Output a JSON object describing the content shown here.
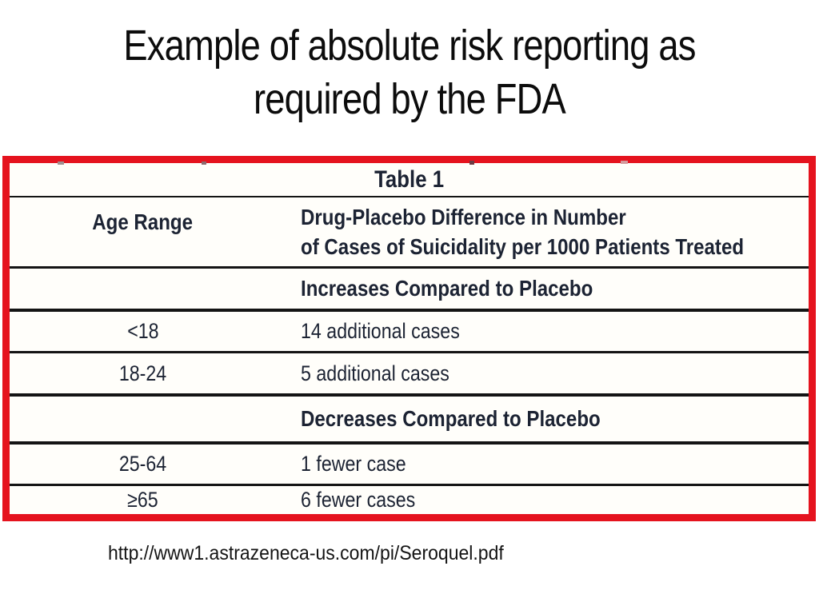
{
  "slide": {
    "title_line1": "Example of absolute risk reporting as",
    "title_line2": "required by the FDA",
    "source_url": "http://www1.astrazeneca-us.com/pi/Seroquel.pdf"
  },
  "table": {
    "caption": "Table 1",
    "col1_header": "Age Range",
    "col2_header_line1": "Drug-Placebo Difference in Number",
    "col2_header_line2": "of Cases of Suicidality per 1000 Patients Treated",
    "sections": [
      {
        "label": "Increases Compared to Placebo",
        "rows": [
          {
            "age": "<18",
            "difference": "14 additional cases"
          },
          {
            "age": "18-24",
            "difference": "5 additional cases"
          }
        ]
      },
      {
        "label": "Decreases Compared to Placebo",
        "rows": [
          {
            "age": "25-64",
            "difference": "1 fewer case"
          },
          {
            "age": "≥65",
            "difference": "6 fewer cases"
          }
        ]
      }
    ],
    "colors": {
      "border_red": "#e5131e",
      "rule_black": "#141414",
      "text": "#1c2333"
    }
  }
}
